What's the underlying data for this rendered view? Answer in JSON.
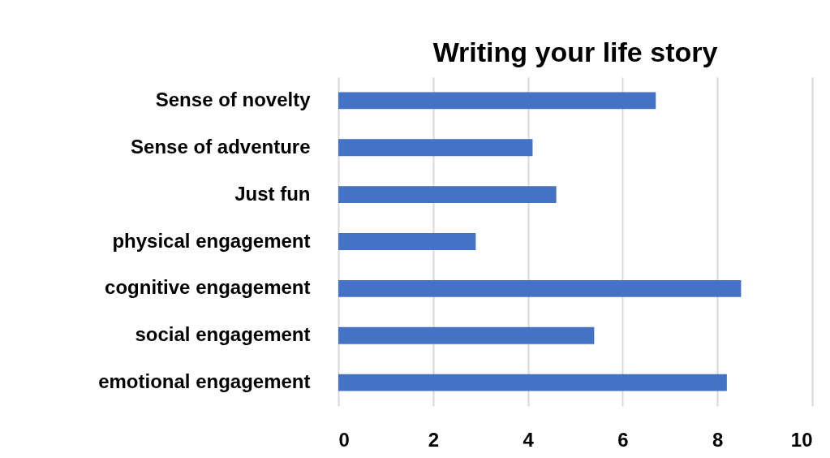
{
  "chart_data": {
    "type": "bar",
    "orientation": "horizontal",
    "title": "Writing your life story",
    "categories": [
      "Sense of novelty",
      "Sense of adventure",
      "Just fun",
      "physical engagement",
      "cognitive  engagement",
      "social engagement",
      "emotional engagement"
    ],
    "values": [
      6.7,
      4.1,
      4.6,
      2.9,
      8.5,
      5.4,
      8.2
    ],
    "color": "#4472c4",
    "xlim": [
      0,
      10
    ],
    "xticks": [
      0,
      2,
      4,
      6,
      8,
      10
    ],
    "grid": "x"
  }
}
